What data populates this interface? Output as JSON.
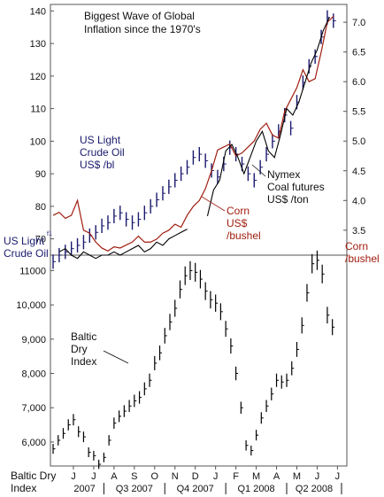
{
  "chart_data": [
    {
      "type": "line",
      "panel": "top",
      "title": "Biggest Wave of Global Inflation since the 1970's",
      "title_lines": [
        "Biggest Wave of Global",
        "Inflation since the 1970's"
      ],
      "left_axis": {
        "ticks": [
          70,
          80,
          90,
          100,
          110,
          120,
          130,
          140
        ],
        "range": [
          65,
          142
        ]
      },
      "right_axis": {
        "ticks": [
          "3.5",
          "4.0",
          "4.5",
          "5.0",
          "5.5",
          "6.0",
          "6.5",
          "7.0"
        ],
        "range": [
          3.08,
          7.3
        ]
      },
      "x_months": [
        "M",
        "J",
        "J",
        "A",
        "S",
        "O",
        "N",
        "D",
        "J",
        "F",
        "M",
        "A",
        "M",
        "J",
        "J"
      ],
      "series": [
        {
          "name": "US Light Crude Oil US$ /bl",
          "label_lines": [
            "US Light",
            "Crude Oil",
            "US$ /bl"
          ],
          "axis": "left",
          "style": "bars",
          "color": "#1a1a6e",
          "x": [
            0.0,
            0.3,
            0.6,
            0.9,
            1.2,
            1.5,
            1.8,
            2.1,
            2.4,
            2.7,
            3.0,
            3.3,
            3.6,
            3.9,
            4.2,
            4.5,
            4.8,
            5.1,
            5.4,
            5.7,
            6.0,
            6.3,
            6.6,
            6.9,
            7.2,
            7.5,
            7.8,
            8.1,
            8.4,
            8.7,
            9.0,
            9.3,
            9.6,
            9.9,
            10.2,
            10.5,
            10.8,
            11.1,
            11.4,
            11.7,
            12.0,
            12.3,
            12.6,
            12.9,
            13.2,
            13.5,
            13.8
          ],
          "values": [
            63,
            65,
            66,
            67,
            68,
            69,
            71,
            72,
            74,
            75,
            77,
            78,
            76,
            75,
            76,
            78,
            80,
            82,
            84,
            86,
            88,
            90,
            92,
            95,
            96,
            94,
            91,
            89,
            93,
            98,
            96,
            93,
            90,
            88,
            92,
            96,
            100,
            103,
            108,
            104,
            112,
            118,
            123,
            126,
            132,
            138,
            137
          ]
        },
        {
          "name": "Corn US$ /bushel",
          "label_lines": [
            "Corn",
            "US$",
            "/bushel"
          ],
          "axis": "right",
          "style": "line",
          "color": "#a01d10",
          "x": [
            0.0,
            0.3,
            0.6,
            0.9,
            1.2,
            1.5,
            1.8,
            2.1,
            2.4,
            2.7,
            3.0,
            3.3,
            3.6,
            3.9,
            4.2,
            4.5,
            4.8,
            5.1,
            5.4,
            5.7,
            6.0,
            6.3,
            6.6,
            6.9,
            7.2,
            7.5,
            7.8,
            8.1,
            8.4,
            8.7,
            9.0,
            9.3,
            9.6,
            9.9,
            10.2,
            10.5,
            10.8,
            11.1,
            11.4,
            11.7,
            12.0,
            12.3,
            12.6,
            12.9,
            13.2,
            13.5,
            13.8
          ],
          "values": [
            3.75,
            3.8,
            3.7,
            3.75,
            4.0,
            3.5,
            3.45,
            3.3,
            3.2,
            3.15,
            3.22,
            3.2,
            3.25,
            3.3,
            3.4,
            3.3,
            3.3,
            3.35,
            3.45,
            3.5,
            3.6,
            3.55,
            3.75,
            3.9,
            4.0,
            4.2,
            4.5,
            4.85,
            4.9,
            4.95,
            4.75,
            4.8,
            4.9,
            5.0,
            5.2,
            5.3,
            5.1,
            5.05,
            5.5,
            5.7,
            5.9,
            6.2,
            6.0,
            6.05,
            6.5,
            7.0,
            7.1
          ]
        },
        {
          "name": "Nymex Coal futures US$ /ton",
          "label_lines": [
            "Nymex",
            "Coal futures",
            "US$ /ton"
          ],
          "axis": "left",
          "style": "line",
          "color": "#000000",
          "x": [
            0.0,
            0.3,
            0.6,
            0.9,
            1.2,
            1.5,
            1.8,
            2.1,
            2.4,
            2.7,
            3.0,
            3.3,
            3.6,
            3.9,
            4.2,
            4.5,
            4.8,
            5.1,
            5.4,
            5.7,
            6.0,
            6.3,
            6.6,
            6.9,
            7.2,
            7.5,
            7.8,
            8.1,
            8.4,
            8.7,
            9.0,
            9.3,
            9.6,
            9.9,
            10.2,
            10.5,
            10.8,
            11.1,
            11.4,
            11.7,
            12.0,
            12.3,
            12.6,
            12.9,
            13.2,
            13.5,
            13.8
          ],
          "values": [
            null,
            null,
            null,
            null,
            null,
            null,
            null,
            null,
            null,
            null,
            null,
            null,
            null,
            null,
            null,
            null,
            null,
            null,
            null,
            null,
            null,
            null,
            null,
            null,
            null,
            null,
            null,
            null,
            null,
            null,
            null,
            null,
            null,
            null,
            null,
            null,
            null,
            null,
            null,
            null,
            null,
            null,
            null,
            null,
            null,
            null,
            null
          ]
        }
      ],
      "coal_segments": [
        {
          "x": [
            0.3,
            0.6,
            0.9,
            1.2,
            1.5,
            1.8,
            2.1,
            2.4,
            2.7,
            3.0,
            3.3,
            3.6,
            3.9,
            4.2,
            4.5,
            4.8,
            5.1,
            5.4,
            5.7,
            6.0,
            6.3,
            6.6
          ],
          "values": [
            66,
            67,
            65,
            64,
            66,
            65,
            64,
            65,
            65,
            66,
            65,
            66,
            67,
            68,
            66,
            67,
            69,
            68,
            70,
            71,
            72,
            73
          ]
        },
        {
          "x": [
            7.6,
            7.9,
            8.2,
            8.5,
            8.8,
            9.1,
            9.4,
            9.7,
            10.0,
            10.3,
            10.6,
            10.9,
            11.2,
            11.5,
            11.8,
            12.1,
            12.4,
            12.7,
            13.0,
            13.3,
            13.6
          ],
          "values": [
            77,
            85,
            88,
            97,
            99,
            95,
            90,
            95,
            100,
            103,
            97,
            95,
            102,
            110,
            108,
            112,
            118,
            124,
            128,
            134,
            138
          ]
        }
      ]
    },
    {
      "type": "line",
      "panel": "bottom",
      "series": [
        {
          "name": "Baltic Dry Index",
          "label_lines": [
            "Baltic",
            "Dry",
            "Index"
          ],
          "style": "bars",
          "color": "#000000",
          "x": [
            0.0,
            0.25,
            0.5,
            0.75,
            1.0,
            1.25,
            1.5,
            1.75,
            2.0,
            2.25,
            2.5,
            2.75,
            3.0,
            3.25,
            3.5,
            3.75,
            4.0,
            4.25,
            4.5,
            4.75,
            5.0,
            5.25,
            5.5,
            5.75,
            6.0,
            6.25,
            6.5,
            6.75,
            7.0,
            7.25,
            7.5,
            7.75,
            8.0,
            8.25,
            8.5,
            8.75,
            9.0,
            9.25,
            9.5,
            9.75,
            10.0,
            10.25,
            10.5,
            10.75,
            11.0,
            11.25,
            11.5,
            11.75,
            12.0,
            12.25,
            12.5,
            12.75,
            13.0,
            13.25,
            13.5,
            13.75
          ],
          "values": [
            5800,
            6050,
            6250,
            6500,
            6650,
            6300,
            6150,
            5700,
            5600,
            5350,
            5550,
            6050,
            6550,
            6750,
            6900,
            7050,
            7200,
            7300,
            7550,
            7800,
            8300,
            8600,
            9100,
            9500,
            9900,
            10450,
            10850,
            11000,
            10950,
            10750,
            10400,
            10150,
            10050,
            9800,
            9300,
            8800,
            8000,
            7000,
            5900,
            5750,
            6200,
            6700,
            7050,
            7400,
            7800,
            7750,
            7800,
            8150,
            8700,
            9400,
            10350,
            11200,
            11300,
            10900,
            9700,
            9350
          ]
        }
      ],
      "y_axis": {
        "ticks": [
          "6,000",
          "7,000",
          "8,000",
          "9,000",
          "10,000",
          "11000"
        ],
        "range": [
          5300,
          11450
        ]
      }
    }
  ],
  "side_labels": {
    "top_left": [
      "US Light",
      "Crude Oil"
    ],
    "top_left_small": "f1",
    "right": [
      "Corn",
      "/bushel"
    ],
    "bottom_left": [
      "Baltic Dry",
      "Index"
    ]
  },
  "x_axis": {
    "months": [
      "J",
      "J",
      "A",
      "S",
      "O",
      "N",
      "D",
      "J",
      "F",
      "M",
      "A",
      "M",
      "J",
      "J"
    ],
    "periods": [
      "2007",
      "Q3 2007",
      "Q4 2007",
      "Q1 2008",
      "Q2 2008"
    ]
  }
}
